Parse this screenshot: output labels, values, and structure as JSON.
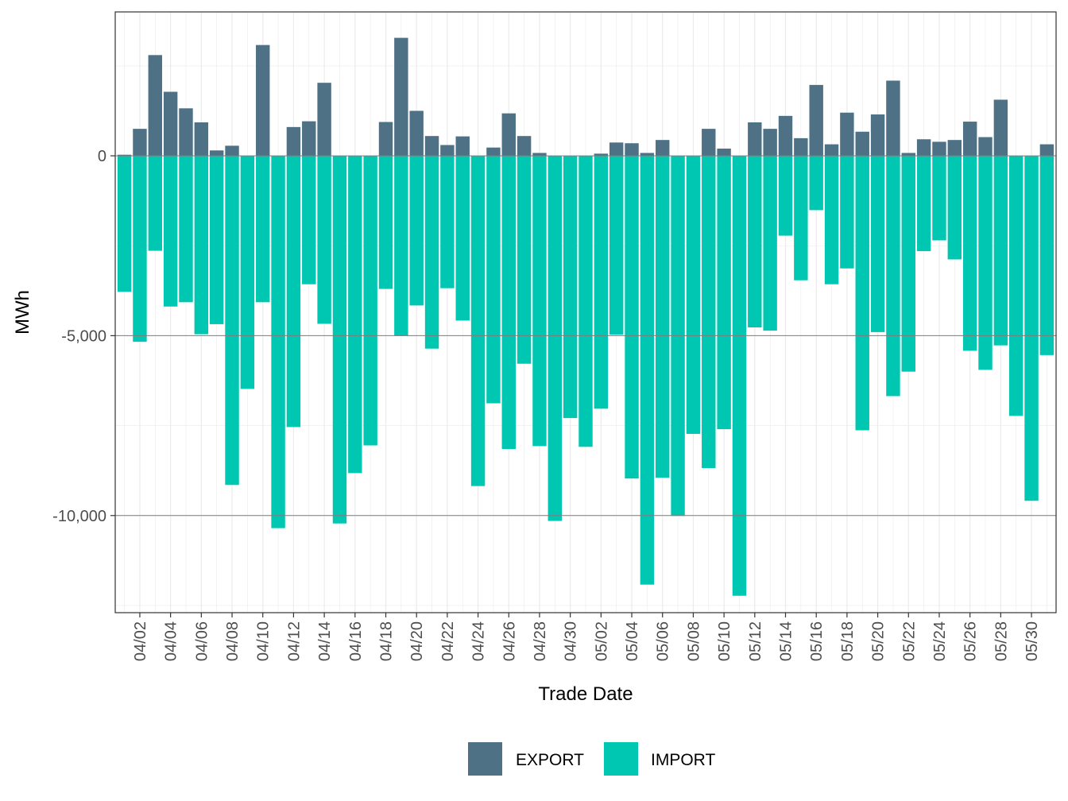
{
  "chart_data": {
    "type": "bar",
    "stacked": true,
    "title": "",
    "xlabel": "Trade Date",
    "ylabel": "MWh",
    "ylim": [
      -12700,
      4000
    ],
    "yticks": [
      {
        "value": 0,
        "label": "0"
      },
      {
        "value": -5000,
        "label": "-5,000"
      },
      {
        "value": -10000,
        "label": "-10,000"
      }
    ],
    "y_minor_ticks": [
      2500,
      -2500,
      -7500,
      -12500
    ],
    "grid": true,
    "legend_position": "bottom",
    "categories": [
      "04/01",
      "04/02",
      "04/03",
      "04/04",
      "04/05",
      "04/06",
      "04/07",
      "04/08",
      "04/09",
      "04/10",
      "04/11",
      "04/12",
      "04/13",
      "04/14",
      "04/15",
      "04/16",
      "04/17",
      "04/18",
      "04/19",
      "04/20",
      "04/21",
      "04/22",
      "04/23",
      "04/24",
      "04/25",
      "04/26",
      "04/27",
      "04/28",
      "04/29",
      "04/30",
      "05/01",
      "05/02",
      "05/03",
      "05/04",
      "05/05",
      "05/06",
      "05/07",
      "05/08",
      "05/09",
      "05/10",
      "05/11",
      "05/12",
      "05/13",
      "05/14",
      "05/15",
      "05/16",
      "05/17",
      "05/18",
      "05/19",
      "05/20",
      "05/21",
      "05/22",
      "05/23",
      "05/24",
      "05/25",
      "05/26",
      "05/27",
      "05/28",
      "05/29",
      "05/30",
      "05/31"
    ],
    "x_tick_labels": [
      "04/02",
      "04/04",
      "04/06",
      "04/08",
      "04/10",
      "04/12",
      "04/14",
      "04/16",
      "04/18",
      "04/20",
      "04/22",
      "04/24",
      "04/26",
      "04/28",
      "04/30",
      "05/02",
      "05/04",
      "05/06",
      "05/08",
      "05/10",
      "05/12",
      "05/14",
      "05/16",
      "05/18",
      "05/20",
      "05/22",
      "05/24",
      "05/26",
      "05/28",
      "05/30"
    ],
    "series": [
      {
        "name": "EXPORT",
        "color": "#4e7186",
        "values": [
          30,
          750,
          2800,
          1780,
          1320,
          930,
          150,
          280,
          0,
          3080,
          0,
          800,
          960,
          2030,
          0,
          0,
          0,
          940,
          3280,
          1250,
          550,
          300,
          540,
          0,
          230,
          1180,
          550,
          80,
          0,
          0,
          0,
          60,
          370,
          350,
          80,
          440,
          0,
          0,
          750,
          200,
          0,
          930,
          750,
          1110,
          490,
          1970,
          320,
          1200,
          670,
          1150,
          2090,
          80,
          460,
          390,
          440,
          950,
          520,
          1560,
          0,
          0,
          320
        ]
      },
      {
        "name": "IMPORT",
        "color": "#00c7b1",
        "values": [
          -3780,
          -5170,
          -2640,
          -4190,
          -4070,
          -4960,
          -4680,
          -9150,
          -6480,
          -4070,
          -10350,
          -7540,
          -3570,
          -4670,
          -10220,
          -8820,
          -8050,
          -3700,
          -5010,
          -4160,
          -5360,
          -3680,
          -4580,
          -9180,
          -6880,
          -8150,
          -5780,
          -8070,
          -10150,
          -7290,
          -8090,
          -7030,
          -4970,
          -8970,
          -11920,
          -8950,
          -10010,
          -7730,
          -8680,
          -7600,
          -12230,
          -4770,
          -4860,
          -2220,
          -3460,
          -1510,
          -3570,
          -3130,
          -7630,
          -4900,
          -6680,
          -6000,
          -2650,
          -2350,
          -2880,
          -5420,
          -5950,
          -5270,
          -7230,
          -9590,
          -5540
        ]
      }
    ]
  }
}
